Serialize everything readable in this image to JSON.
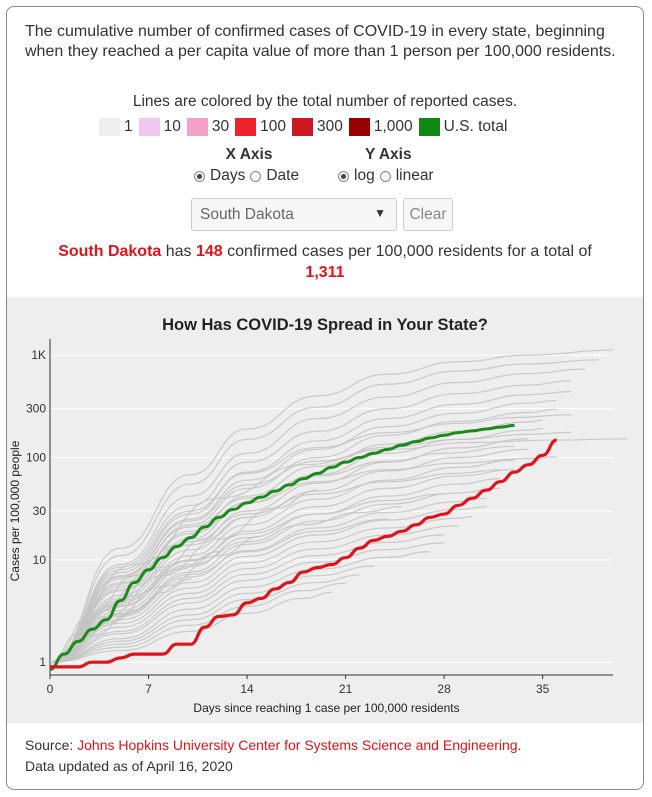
{
  "intro": "The cumulative number of confirmed cases of COVID-19 in every state, beginning when they reached a per capita value of more than 1 person per 100,000 residents.",
  "legend": {
    "title": "Lines are colored by the total number of reported cases.",
    "items": [
      {
        "label": "1",
        "color": "#eeeeee"
      },
      {
        "label": "10",
        "color": "#f0c8ef"
      },
      {
        "label": "30",
        "color": "#f5a0c8"
      },
      {
        "label": "100",
        "color": "#ee2228"
      },
      {
        "label": "300",
        "color": "#cc1820"
      },
      {
        "label": "1,000",
        "color": "#990000"
      },
      {
        "label": "U.S. total",
        "color": "#118811"
      }
    ]
  },
  "controls": {
    "x_axis": {
      "label": "X Axis",
      "options": [
        "Days",
        "Date"
      ],
      "selected": "Days"
    },
    "y_axis": {
      "label": "Y Axis",
      "options": [
        "log",
        "linear"
      ],
      "selected": "log"
    },
    "state_select": "South Dakota",
    "clear_label": "Clear"
  },
  "summary": {
    "state": "South Dakota",
    "text1": " has ",
    "per_capita": "148",
    "text2": " confirmed cases per 100,000 residents for a total of",
    "total": "1,311"
  },
  "chart_data": {
    "type": "line",
    "title": "How Has COVID-19 Spread in Your State?",
    "xlabel": "Days since reaching 1 case per 100,000 residents",
    "ylabel": "Cases per 100,000 people",
    "xlim": [
      0,
      40
    ],
    "ylim": [
      0.75,
      1200
    ],
    "yscale": "log",
    "x_ticks": [
      0,
      7,
      14,
      21,
      28,
      35
    ],
    "y_ticks": [
      {
        "v": 1,
        "label": "1"
      },
      {
        "v": 10,
        "label": "10"
      },
      {
        "v": 30,
        "label": "30"
      },
      {
        "v": 100,
        "label": "100"
      },
      {
        "v": 300,
        "label": "300"
      },
      {
        "v": 1000,
        "label": "1K"
      }
    ],
    "highlight_color": "#e0121a",
    "us_color": "#1a8a1a",
    "series": [
      {
        "name": "South Dakota",
        "role": "highlight",
        "x": [
          0,
          1,
          2,
          3,
          4,
          5,
          6,
          7,
          8,
          9,
          10,
          11,
          12,
          13,
          14,
          15,
          16,
          17,
          18,
          19,
          20,
          21,
          22,
          23,
          24,
          25,
          26,
          27,
          28,
          29,
          30,
          31,
          32,
          33,
          34,
          35,
          36
        ],
        "y": [
          0.9,
          0.9,
          0.9,
          1.0,
          1.0,
          1.1,
          1.2,
          1.2,
          1.2,
          1.5,
          1.5,
          2.2,
          2.8,
          2.9,
          3.8,
          4.2,
          5.2,
          6.0,
          7.6,
          8.4,
          9.0,
          10.5,
          13.0,
          15.5,
          17.0,
          19.0,
          22.0,
          26.0,
          28.0,
          34.0,
          40.0,
          48.0,
          58.0,
          72.0,
          85.0,
          105.0,
          148.0
        ]
      },
      {
        "name": "U.S. total",
        "role": "us",
        "x": [
          0,
          1,
          2,
          3,
          4,
          5,
          6,
          7,
          8,
          9,
          10,
          11,
          12,
          13,
          14,
          15,
          16,
          17,
          18,
          19,
          20,
          21,
          22,
          23,
          24,
          25,
          26,
          27,
          28,
          29,
          30,
          31,
          32,
          33
        ],
        "y": [
          0.85,
          1.2,
          1.6,
          2.1,
          2.6,
          4.0,
          6.0,
          8.0,
          10.5,
          13.5,
          16.5,
          21.0,
          26.0,
          31.0,
          36.0,
          41.0,
          47.0,
          54.0,
          62.0,
          70.0,
          80.0,
          90.0,
          100.0,
          110.0,
          120.0,
          132.0,
          143.0,
          155.0,
          165.0,
          175.0,
          182.0,
          190.0,
          198.0,
          206.0
        ]
      },
      {
        "role": "state",
        "x": [
          0,
          5,
          10,
          14,
          19,
          24,
          29,
          34,
          40
        ],
        "y": [
          1.0,
          13.0,
          68.0,
          190.0,
          400.0,
          650.0,
          860.0,
          1000.0,
          1120.0
        ]
      },
      {
        "role": "state",
        "x": [
          0,
          5,
          10,
          14,
          19,
          24,
          29,
          34,
          39
        ],
        "y": [
          1.0,
          11.0,
          55.0,
          150.0,
          310.0,
          520.0,
          700.0,
          820.0,
          900.0
        ]
      },
      {
        "role": "state",
        "x": [
          0,
          5,
          10,
          14,
          19,
          24,
          29,
          34,
          38
        ],
        "y": [
          1.0,
          9.0,
          42.0,
          110.0,
          240.0,
          390.0,
          540.0,
          660.0,
          730.0
        ]
      },
      {
        "role": "state",
        "x": [
          0,
          5,
          10,
          14,
          19,
          24,
          29,
          34,
          37
        ],
        "y": [
          1.0,
          8.5,
          34.0,
          90.0,
          180.0,
          300.0,
          420.0,
          510.0,
          560.0
        ]
      },
      {
        "role": "state",
        "x": [
          0,
          5,
          10,
          14,
          19,
          24,
          29,
          34,
          37
        ],
        "y": [
          1.0,
          7.5,
          28.0,
          72.0,
          145.0,
          240.0,
          330.0,
          410.0,
          440.0
        ]
      },
      {
        "role": "state",
        "x": [
          0,
          5,
          10,
          14,
          19,
          24,
          29,
          34,
          36
        ],
        "y": [
          1.0,
          7.0,
          25.0,
          60.0,
          120.0,
          200.0,
          270.0,
          340.0,
          360.0
        ]
      },
      {
        "role": "state",
        "x": [
          0,
          5,
          10,
          14,
          19,
          24,
          29,
          34,
          36
        ],
        "y": [
          1.0,
          6.0,
          22.0,
          50.0,
          100.0,
          165.0,
          225.0,
          275.0,
          295.0
        ]
      },
      {
        "role": "state",
        "x": [
          0,
          5,
          10,
          14,
          19,
          24,
          29,
          34,
          35
        ],
        "y": [
          1.0,
          5.5,
          19.0,
          42.0,
          82.0,
          135.0,
          180.0,
          222.0,
          232.0
        ]
      },
      {
        "role": "state",
        "x": [
          0,
          5,
          10,
          14,
          19,
          24,
          29,
          34,
          35
        ],
        "y": [
          1.0,
          5.0,
          16.0,
          36.0,
          68.0,
          110.0,
          150.0,
          185.0,
          192.0
        ]
      },
      {
        "role": "state",
        "x": [
          0,
          5,
          10,
          14,
          19,
          24,
          29,
          34
        ],
        "y": [
          1.0,
          4.5,
          14.0,
          30.0,
          56.0,
          90.0,
          124.0,
          152.0
        ]
      },
      {
        "role": "state",
        "x": [
          0,
          5,
          10,
          14,
          19,
          24,
          29,
          34
        ],
        "y": [
          1.0,
          4.2,
          12.5,
          26.0,
          47.0,
          74.0,
          100.0,
          120.0
        ]
      },
      {
        "role": "state",
        "x": [
          0,
          5,
          10,
          14,
          19,
          24,
          29,
          33
        ],
        "y": [
          1.0,
          3.8,
          11.0,
          22.0,
          39.0,
          60.0,
          80.0,
          94.0
        ]
      },
      {
        "role": "state",
        "x": [
          0,
          5,
          10,
          14,
          19,
          24,
          29,
          33
        ],
        "y": [
          1.0,
          3.5,
          9.8,
          19.0,
          33.0,
          50.0,
          66.0,
          76.0
        ]
      },
      {
        "role": "state",
        "x": [
          0,
          5,
          10,
          14,
          19,
          24,
          29,
          32
        ],
        "y": [
          1.0,
          3.2,
          8.6,
          16.5,
          28.0,
          42.0,
          55.0,
          62.0
        ]
      },
      {
        "role": "state",
        "x": [
          0,
          5,
          10,
          14,
          19,
          24,
          29,
          32
        ],
        "y": [
          1.0,
          3.0,
          7.6,
          14.2,
          24.0,
          35.0,
          45.0,
          50.0
        ]
      },
      {
        "role": "state",
        "x": [
          0,
          5,
          10,
          14,
          19,
          24,
          29,
          31
        ],
        "y": [
          1.0,
          2.8,
          6.8,
          12.3,
          20.5,
          29.0,
          37.0,
          40.0
        ]
      },
      {
        "role": "state",
        "x": [
          0,
          5,
          10,
          14,
          19,
          24,
          29,
          31
        ],
        "y": [
          1.0,
          2.6,
          6.0,
          10.8,
          17.5,
          24.5,
          31.0,
          33.0
        ]
      },
      {
        "role": "state",
        "x": [
          0,
          5,
          10,
          14,
          19,
          24,
          29,
          30
        ],
        "y": [
          1.0,
          2.4,
          5.3,
          9.4,
          15.0,
          20.5,
          25.5,
          26.5
        ]
      },
      {
        "role": "state",
        "x": [
          0,
          5,
          10,
          14,
          19,
          24,
          29
        ],
        "y": [
          1.0,
          2.2,
          4.7,
          8.2,
          12.8,
          17.5,
          21.5
        ]
      },
      {
        "role": "state",
        "x": [
          0,
          5,
          10,
          14,
          19,
          24,
          28
        ],
        "y": [
          1.0,
          2.0,
          4.2,
          7.2,
          11.0,
          14.8,
          17.5
        ]
      },
      {
        "role": "state",
        "x": [
          0,
          5,
          10,
          14,
          19,
          24,
          28
        ],
        "y": [
          1.0,
          1.9,
          3.8,
          6.3,
          9.5,
          12.6,
          14.6
        ]
      },
      {
        "role": "state",
        "x": [
          0,
          5,
          10,
          14,
          19,
          24,
          27
        ],
        "y": [
          1.0,
          1.7,
          3.3,
          5.4,
          8.1,
          10.6,
          12.0
        ]
      },
      {
        "role": "state",
        "x": [
          0,
          5,
          10,
          14,
          19,
          23
        ],
        "y": [
          1.0,
          1.6,
          2.9,
          4.7,
          7.0,
          8.7
        ]
      },
      {
        "role": "state",
        "x": [
          0,
          5,
          10,
          14,
          19,
          22
        ],
        "y": [
          1.0,
          1.5,
          2.6,
          4.1,
          6.0,
          7.1
        ]
      },
      {
        "role": "state",
        "x": [
          0,
          5,
          10,
          14,
          18,
          21
        ],
        "y": [
          1.0,
          1.4,
          2.3,
          3.5,
          5.0,
          5.9
        ]
      },
      {
        "role": "state",
        "x": [
          0,
          5,
          10,
          14,
          18,
          20
        ],
        "y": [
          1.0,
          1.3,
          2.0,
          3.0,
          4.2,
          4.8
        ]
      },
      {
        "role": "state",
        "x": [
          0,
          4,
          8,
          12,
          16,
          19
        ],
        "y": [
          1.0,
          2.8,
          7.0,
          16.0,
          32.0,
          48.0
        ]
      },
      {
        "role": "state",
        "x": [
          0,
          4,
          8,
          12,
          15
        ],
        "y": [
          1.0,
          2.4,
          5.5,
          11.0,
          17.0
        ]
      },
      {
        "role": "state",
        "x": [
          0,
          4,
          8,
          11,
          14
        ],
        "y": [
          1.0,
          3.2,
          8.5,
          16.0,
          26.0
        ]
      },
      {
        "role": "state",
        "x": [
          0,
          3,
          6,
          9,
          12
        ],
        "y": [
          1.0,
          2.2,
          4.5,
          8.0,
          12.0
        ]
      },
      {
        "role": "state",
        "x": [
          0,
          3,
          6,
          9,
          11
        ],
        "y": [
          1.0,
          3.0,
          7.0,
          14.0,
          20.0
        ]
      },
      {
        "role": "state",
        "x": [
          0,
          3,
          6,
          8,
          10
        ],
        "y": [
          1.0,
          1.8,
          3.2,
          4.8,
          6.5
        ]
      },
      {
        "role": "state",
        "x": [
          0,
          2,
          4,
          6,
          8
        ],
        "y": [
          1.0,
          1.9,
          3.5,
          5.5,
          8.0
        ]
      },
      {
        "role": "state",
        "x": [
          0,
          2,
          4,
          6,
          7
        ],
        "y": [
          1.0,
          1.5,
          2.3,
          3.2,
          3.8
        ]
      },
      {
        "role": "state",
        "x": [
          0,
          5,
          10,
          14,
          19,
          24,
          28,
          33
        ],
        "y": [
          1.0,
          6.5,
          21.0,
          40.0,
          66.0,
          92.0,
          110.0,
          128.0
        ]
      },
      {
        "role": "state",
        "x": [
          0,
          5,
          10,
          14,
          19,
          24,
          29,
          32
        ],
        "y": [
          1.0,
          5.2,
          15.0,
          28.0,
          44.0,
          58.0,
          70.0,
          76.0
        ]
      },
      {
        "role": "state",
        "x": [
          0,
          5,
          10,
          14,
          19,
          24,
          28
        ],
        "y": [
          1.0,
          4.0,
          10.0,
          18.0,
          28.0,
          38.0,
          44.0
        ]
      },
      {
        "role": "state",
        "x": [
          0,
          5,
          10,
          14,
          18,
          22,
          25
        ],
        "y": [
          1.0,
          3.6,
          9.0,
          15.0,
          22.0,
          29.0,
          33.0
        ]
      },
      {
        "role": "state",
        "x": [
          0,
          5,
          10,
          14,
          19,
          24
        ],
        "y": [
          1.0,
          2.9,
          7.2,
          12.0,
          19.0,
          25.0
        ]
      },
      {
        "role": "state",
        "x": [
          0,
          5,
          10,
          14,
          19,
          24,
          29,
          33,
          37
        ],
        "y": [
          1.0,
          8.0,
          30.0,
          70.0,
          125.0,
          175.0,
          215.0,
          245.0,
          262.0
        ]
      },
      {
        "role": "state",
        "x": [
          0,
          5,
          10,
          14,
          19,
          24,
          29,
          34,
          37
        ],
        "y": [
          1.0,
          6.8,
          24.0,
          54.0,
          92.0,
          126.0,
          150.0,
          168.0,
          176.0
        ]
      },
      {
        "role": "state",
        "x": [
          0,
          5,
          10,
          14,
          19,
          24,
          29,
          34,
          36
        ],
        "y": [
          1.0,
          5.8,
          18.0,
          36.0,
          58.0,
          76.0,
          88.0,
          98.0,
          101.0
        ]
      },
      {
        "role": "state",
        "x": [
          0,
          6,
          12,
          18,
          24,
          30,
          36,
          41
        ],
        "y": [
          1.0,
          9.0,
          40.0,
          85.0,
          120.0,
          140.0,
          148.0,
          152.0
        ]
      }
    ]
  },
  "source": {
    "prefix": "Source: ",
    "link": "Johns Hopkins University Center for Systems Science and Engineering",
    "suffix": ".",
    "updated": "Data updated as of April 16, 2020"
  }
}
